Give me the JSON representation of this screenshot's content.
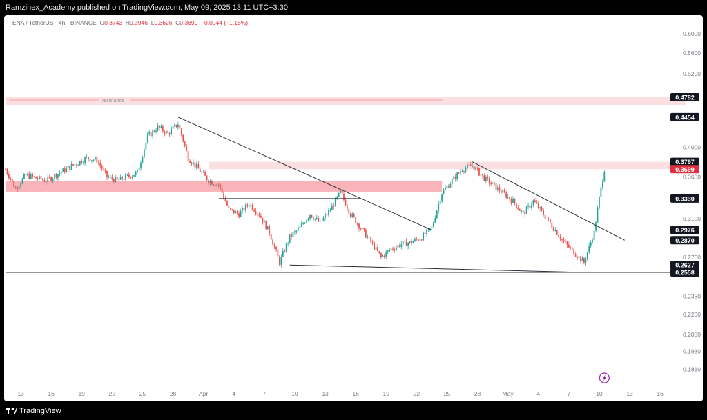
{
  "header": {
    "publish_line": "Ramzinex_Academy published on TradingView.com, May 09, 2025 13:11 UTC+3:30"
  },
  "footer": {
    "brand": "TradingView",
    "logo_icon": "tradingview-logo-icon"
  },
  "legend": {
    "symbol": "ENA / TetherUS · 4h · BINANCE",
    "open_label": "O",
    "open": "0.3743",
    "high_label": "H",
    "high": "0.3946",
    "low_label": "L",
    "low": "0.3626",
    "close_label": "C",
    "close": "0.3699",
    "change": "−0.0044 (−1.18%)"
  },
  "annotation": {
    "resistance": "resistance"
  },
  "colors": {
    "up": "#26a69a",
    "down": "#ef5350",
    "zone_light": "#fce0e1",
    "zone_strong": "#f8b4b9",
    "trendline": "#2a2e39",
    "price_badge": "#e0303f"
  },
  "chart_data": {
    "type": "candlestick",
    "symbol": "ENA / TetherUS",
    "interval": "4h",
    "exchange": "BINANCE",
    "price_scale": "log",
    "y_ticks": [
      "0.6000",
      "0.5600",
      "0.5200",
      "0.4000",
      "0.3600",
      "0.3100",
      "0.2700",
      "0.2350",
      "0.2200",
      "0.2050",
      "0.1930",
      "0.1810"
    ],
    "x_ticks": [
      "13",
      "16",
      "19",
      "22",
      "25",
      "28",
      "Apr",
      "4",
      "7",
      "10",
      "13",
      "16",
      "19",
      "22",
      "25",
      "28",
      "May",
      "4",
      "7",
      "10",
      "13",
      "16"
    ],
    "badges": [
      {
        "value": "0.4782",
        "style": "dark"
      },
      {
        "value": "0.4454",
        "style": "dark"
      },
      {
        "value": "0.3797",
        "style": "dark"
      },
      {
        "value": "0.3699",
        "style": "red"
      },
      {
        "value": "0.3330",
        "style": "dark"
      },
      {
        "value": "0.2976",
        "style": "dark"
      },
      {
        "value": "0.2870",
        "style": "dark"
      },
      {
        "value": "0.2627",
        "style": "dark"
      },
      {
        "value": "0.2558",
        "style": "dark"
      }
    ],
    "zones": [
      {
        "from_date": "2025-03-11",
        "to_date": "2025-05-17",
        "low": 0.4654,
        "high": 0.4782,
        "label": "resistance"
      },
      {
        "from_date": "2025-03-31",
        "to_date": "2025-05-17",
        "low": 0.3699,
        "high": 0.3797
      },
      {
        "from_date": "2025-03-11",
        "to_date": "2025-04-23",
        "low": 0.3413,
        "high": 0.3545
      }
    ],
    "trendlines": [
      {
        "from": [
          "2025-03-28",
          0.4454
        ],
        "to": [
          "2025-04-22",
          0.2976
        ]
      },
      {
        "from": [
          "2025-04-26",
          0.3797
        ],
        "to": [
          "2025-05-11",
          0.287
        ]
      },
      {
        "from": [
          "2025-04-08",
          0.2627
        ],
        "to": [
          "2025-05-07",
          0.2558
        ]
      },
      {
        "from": [
          "2025-04-01",
          0.333
        ],
        "to": [
          "2025-04-15",
          0.333
        ]
      },
      {
        "from": [
          "2025-03-11",
          0.2558
        ],
        "to": [
          "2025-05-17",
          0.2558
        ]
      }
    ],
    "path": [
      [
        "2025-03-11",
        0.37
      ],
      [
        "2025-03-12",
        0.345
      ],
      [
        "2025-03-13",
        0.362
      ],
      [
        "2025-03-15",
        0.355
      ],
      [
        "2025-03-17",
        0.37
      ],
      [
        "2025-03-19",
        0.385
      ],
      [
        "2025-03-20",
        0.382
      ],
      [
        "2025-03-21",
        0.36
      ],
      [
        "2025-03-22",
        0.355
      ],
      [
        "2025-03-23",
        0.36
      ],
      [
        "2025-03-24",
        0.365
      ],
      [
        "2025-03-25",
        0.415
      ],
      [
        "2025-03-26",
        0.43
      ],
      [
        "2025-03-27",
        0.42
      ],
      [
        "2025-03-28",
        0.435
      ],
      [
        "2025-03-29",
        0.385
      ],
      [
        "2025-03-30",
        0.37
      ],
      [
        "2025-03-31",
        0.355
      ],
      [
        "2025-04-01",
        0.35
      ],
      [
        "2025-04-02",
        0.32
      ],
      [
        "2025-04-03",
        0.315
      ],
      [
        "2025-04-04",
        0.327
      ],
      [
        "2025-04-05",
        0.315
      ],
      [
        "2025-04-06",
        0.295
      ],
      [
        "2025-04-07",
        0.265
      ],
      [
        "2025-04-08",
        0.29
      ],
      [
        "2025-04-09",
        0.3
      ],
      [
        "2025-04-10",
        0.315
      ],
      [
        "2025-04-11",
        0.305
      ],
      [
        "2025-04-12",
        0.32
      ],
      [
        "2025-04-13",
        0.34
      ],
      [
        "2025-04-14",
        0.315
      ],
      [
        "2025-04-15",
        0.3
      ],
      [
        "2025-04-16",
        0.285
      ],
      [
        "2025-04-17",
        0.27
      ],
      [
        "2025-04-18",
        0.278
      ],
      [
        "2025-04-19",
        0.283
      ],
      [
        "2025-04-20",
        0.285
      ],
      [
        "2025-04-21",
        0.29
      ],
      [
        "2025-04-22",
        0.3
      ],
      [
        "2025-04-23",
        0.34
      ],
      [
        "2025-04-24",
        0.355
      ],
      [
        "2025-04-25",
        0.37
      ],
      [
        "2025-04-26",
        0.375
      ],
      [
        "2025-04-27",
        0.36
      ],
      [
        "2025-04-28",
        0.35
      ],
      [
        "2025-04-29",
        0.34
      ],
      [
        "2025-04-30",
        0.33
      ],
      [
        "2025-05-01",
        0.315
      ],
      [
        "2025-05-02",
        0.33
      ],
      [
        "2025-05-03",
        0.315
      ],
      [
        "2025-05-04",
        0.3
      ],
      [
        "2025-05-05",
        0.285
      ],
      [
        "2025-05-06",
        0.275
      ],
      [
        "2025-05-07",
        0.265
      ],
      [
        "2025-05-08",
        0.295
      ],
      [
        "2025-05-09",
        0.3699
      ]
    ]
  }
}
